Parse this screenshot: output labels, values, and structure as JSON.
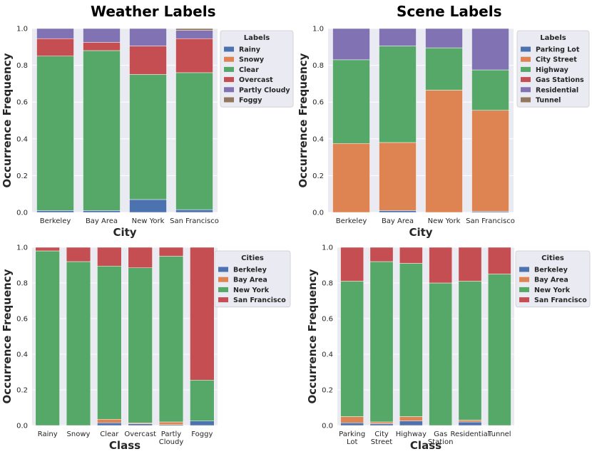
{
  "figure_titles": [
    "Weather Labels",
    "Scene Labels"
  ],
  "chart_data": [
    {
      "type": "bar",
      "stacked": true,
      "title": "Weather Labels",
      "xlabel": "City",
      "ylabel": "Occurrence Frequency",
      "ylim": [
        0,
        1
      ],
      "yticks": [
        "0.0",
        "0.2",
        "0.4",
        "0.6",
        "0.8",
        "1.0"
      ],
      "categories": [
        "Berkeley",
        "Bay Area",
        "New York",
        "San Francisco"
      ],
      "legend_title": "Labels",
      "legend_location": "outside-right",
      "series": [
        {
          "name": "Rainy",
          "color": "#4c72b0",
          "values": [
            0.01,
            0.01,
            0.07,
            0.015
          ]
        },
        {
          "name": "Snowy",
          "color": "#dd8452",
          "values": [
            0.0,
            0.0,
            0.0,
            0.0
          ]
        },
        {
          "name": "Clear",
          "color": "#55a868",
          "values": [
            0.84,
            0.87,
            0.68,
            0.745
          ]
        },
        {
          "name": "Overcast",
          "color": "#c44e52",
          "values": [
            0.095,
            0.045,
            0.155,
            0.185
          ]
        },
        {
          "name": "Partly Cloudy",
          "color": "#8172b3",
          "values": [
            0.055,
            0.075,
            0.095,
            0.045
          ]
        },
        {
          "name": "Foggy",
          "color": "#937860",
          "values": [
            0.0,
            0.0,
            0.0,
            0.01
          ]
        }
      ]
    },
    {
      "type": "bar",
      "stacked": true,
      "title": "Scene Labels",
      "xlabel": "City",
      "ylabel": "Occurrence Frequency",
      "ylim": [
        0,
        1
      ],
      "yticks": [
        "0.0",
        "0.2",
        "0.4",
        "0.6",
        "0.8",
        "1.0"
      ],
      "categories": [
        "Berkeley",
        "Bay Area",
        "New York",
        "San Francisco"
      ],
      "legend_title": "Labels",
      "legend_location": "outside-right",
      "series": [
        {
          "name": "Parking Lot",
          "color": "#4c72b0",
          "values": [
            0.0,
            0.01,
            0.0,
            0.005
          ]
        },
        {
          "name": "City Street",
          "color": "#dd8452",
          "values": [
            0.375,
            0.37,
            0.665,
            0.55
          ]
        },
        {
          "name": "Highway",
          "color": "#55a868",
          "values": [
            0.455,
            0.525,
            0.23,
            0.22
          ]
        },
        {
          "name": "Gas Stations",
          "color": "#c44e52",
          "values": [
            0.0,
            0.0,
            0.0,
            0.0
          ]
        },
        {
          "name": "Residential",
          "color": "#8172b3",
          "values": [
            0.17,
            0.095,
            0.105,
            0.225
          ]
        },
        {
          "name": "Tunnel",
          "color": "#937860",
          "values": [
            0.0,
            0.0,
            0.0,
            0.0
          ]
        }
      ]
    },
    {
      "type": "bar",
      "stacked": true,
      "title": "",
      "xlabel": "Class",
      "ylabel": "Occurrence Frequency",
      "ylim": [
        0,
        1
      ],
      "yticks": [
        "0.0",
        "0.2",
        "0.4",
        "0.6",
        "0.8",
        "1.0"
      ],
      "categories": [
        [
          "Rainy"
        ],
        [
          "Snowy"
        ],
        [
          "Clear"
        ],
        [
          "Overcast"
        ],
        [
          "Partly",
          "Cloudy"
        ],
        [
          "Foggy"
        ]
      ],
      "legend_title": "Cities",
      "legend_location": "outside-right",
      "series": [
        {
          "name": "Berkeley",
          "color": "#4c72b0",
          "values": [
            0.0,
            0.0,
            0.015,
            0.01,
            0.005,
            0.025
          ]
        },
        {
          "name": "Bay Area",
          "color": "#dd8452",
          "values": [
            0.0,
            0.0,
            0.02,
            0.005,
            0.015,
            0.0
          ]
        },
        {
          "name": "New York",
          "color": "#55a868",
          "values": [
            0.98,
            0.92,
            0.86,
            0.87,
            0.93,
            0.23
          ]
        },
        {
          "name": "San Francisco",
          "color": "#c44e52",
          "values": [
            0.02,
            0.08,
            0.105,
            0.115,
            0.05,
            0.745
          ]
        }
      ]
    },
    {
      "type": "bar",
      "stacked": true,
      "title": "",
      "xlabel": "Class",
      "ylabel": "Occurrence Frequency",
      "ylim": [
        0,
        1
      ],
      "yticks": [
        "0.0",
        "0.2",
        "0.4",
        "0.6",
        "0.8",
        "1.0"
      ],
      "categories": [
        [
          "Parking",
          "Lot"
        ],
        [
          "City",
          "Street"
        ],
        [
          "Highway"
        ],
        [
          "Gas",
          "Station"
        ],
        [
          "Residential"
        ],
        [
          "Tunnel"
        ]
      ],
      "legend_title": "Cities",
      "legend_location": "outside-right",
      "series": [
        {
          "name": "Berkeley",
          "color": "#4c72b0",
          "values": [
            0.015,
            0.01,
            0.025,
            0.0,
            0.02,
            0.0
          ]
        },
        {
          "name": "Bay Area",
          "color": "#dd8452",
          "values": [
            0.035,
            0.01,
            0.025,
            0.0,
            0.01,
            0.0
          ]
        },
        {
          "name": "New York",
          "color": "#55a868",
          "values": [
            0.76,
            0.9,
            0.86,
            0.8,
            0.78,
            0.85
          ]
        },
        {
          "name": "San Francisco",
          "color": "#c44e52",
          "values": [
            0.19,
            0.08,
            0.09,
            0.2,
            0.19,
            0.15
          ]
        }
      ]
    }
  ]
}
